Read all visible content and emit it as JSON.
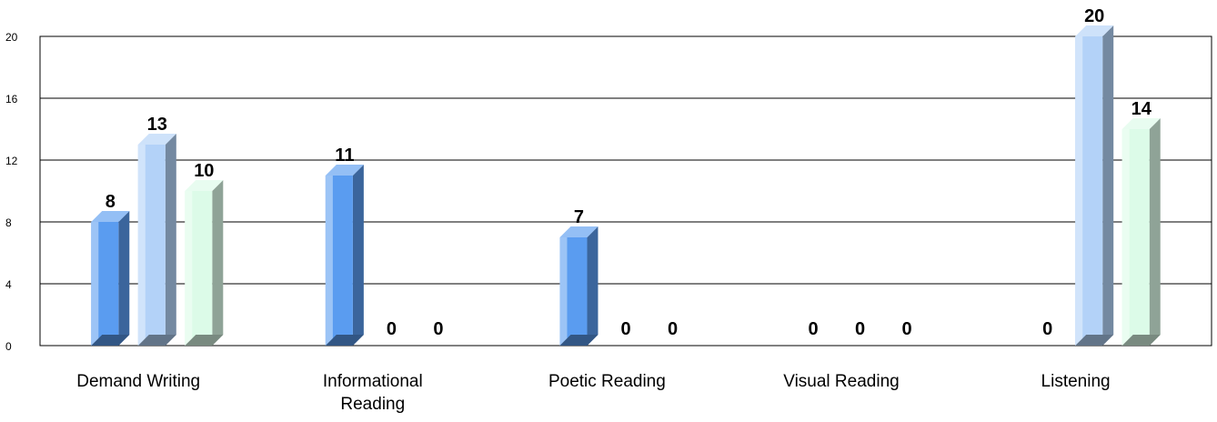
{
  "chart_data": {
    "type": "bar",
    "categories": [
      "Demand Writing",
      "Informational Reading",
      "Poetic Reading",
      "Visual Reading",
      "Listening"
    ],
    "series": [
      {
        "values": [
          8,
          11,
          7,
          0,
          0
        ],
        "color": "#5a9cf0"
      },
      {
        "values": [
          13,
          0,
          0,
          0,
          20
        ],
        "color": "#b3d2f8"
      },
      {
        "values": [
          10,
          0,
          0,
          0,
          14
        ],
        "color": "#dcfbe8"
      }
    ],
    "ylim": [
      0,
      20
    ],
    "yticks": [
      0,
      4,
      8,
      12,
      16,
      20
    ],
    "ytick_labels": [
      "0",
      "4",
      "8",
      "12",
      "16",
      "20"
    ],
    "grid": true,
    "legend": "none",
    "xlabel": "",
    "ylabel": "",
    "title": ""
  }
}
